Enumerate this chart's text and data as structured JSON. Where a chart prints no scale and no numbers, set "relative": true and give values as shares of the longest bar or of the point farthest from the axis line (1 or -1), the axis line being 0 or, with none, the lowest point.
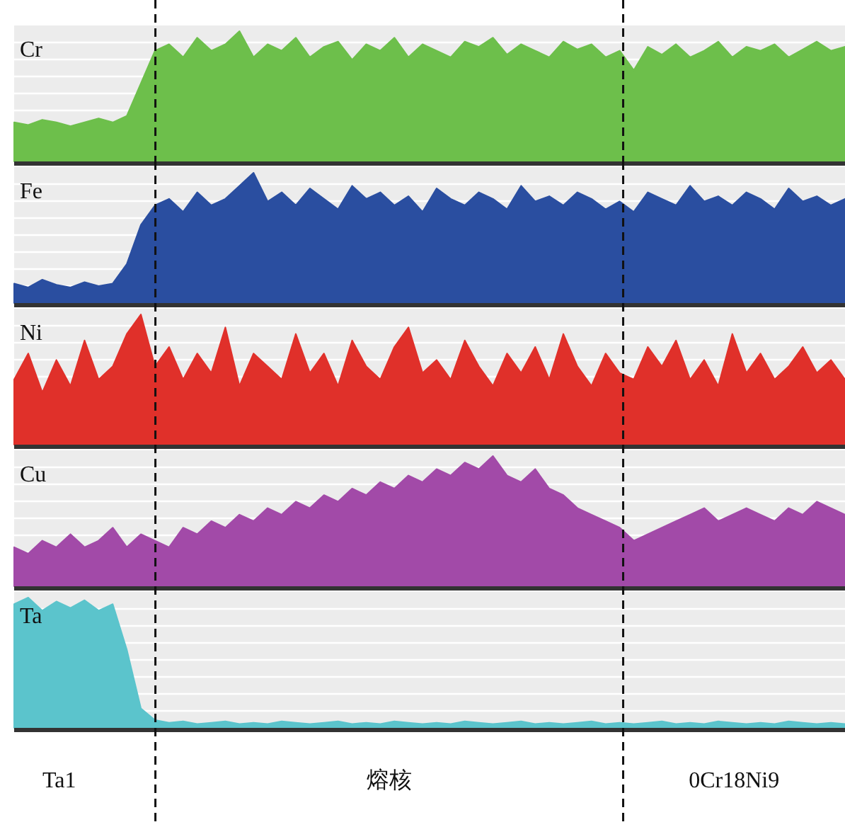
{
  "chart_data": [
    {
      "type": "area",
      "relative": true,
      "grid": true,
      "categories": [
        null,
        null,
        null,
        null,
        null,
        null,
        null,
        null,
        null,
        null,
        null,
        null,
        null,
        null,
        null,
        null,
        null,
        null,
        null,
        null,
        null,
        null,
        null,
        null,
        null,
        null,
        null,
        null,
        null,
        null,
        null,
        null,
        null,
        null,
        null,
        null,
        null,
        null,
        null,
        null,
        null,
        null,
        null,
        null,
        null,
        null,
        null,
        null,
        null,
        null,
        null,
        null,
        null,
        null,
        null,
        null,
        null,
        null,
        null,
        null
      ],
      "series": [
        {
          "name": "Cr",
          "color": "#6dbf4b",
          "values": [
            0.3,
            0.28,
            0.32,
            0.3,
            0.27,
            0.3,
            0.33,
            0.3,
            0.35,
            0.6,
            0.85,
            0.9,
            0.8,
            0.95,
            0.85,
            0.9,
            1.0,
            0.8,
            0.9,
            0.85,
            0.95,
            0.8,
            0.88,
            0.92,
            0.78,
            0.9,
            0.85,
            0.95,
            0.8,
            0.9,
            0.85,
            0.8,
            0.92,
            0.88,
            0.95,
            0.82,
            0.9,
            0.85,
            0.8,
            0.92,
            0.86,
            0.9,
            0.8,
            0.85,
            0.7,
            0.88,
            0.82,
            0.9,
            0.8,
            0.85,
            0.92,
            0.8,
            0.88,
            0.85,
            0.9,
            0.8,
            0.86,
            0.92,
            0.85,
            0.88
          ]
        }
      ]
    },
    {
      "type": "area",
      "relative": true,
      "grid": true,
      "categories": [
        null,
        null,
        null,
        null,
        null,
        null,
        null,
        null,
        null,
        null,
        null,
        null,
        null,
        null,
        null,
        null,
        null,
        null,
        null,
        null,
        null,
        null,
        null,
        null,
        null,
        null,
        null,
        null,
        null,
        null,
        null,
        null,
        null,
        null,
        null,
        null,
        null,
        null,
        null,
        null,
        null,
        null,
        null,
        null,
        null,
        null,
        null,
        null,
        null,
        null,
        null,
        null,
        null,
        null,
        null,
        null,
        null,
        null,
        null,
        null
      ],
      "series": [
        {
          "name": "Fe",
          "color": "#2a4ea0",
          "values": [
            0.15,
            0.12,
            0.18,
            0.14,
            0.12,
            0.16,
            0.13,
            0.15,
            0.3,
            0.6,
            0.75,
            0.8,
            0.7,
            0.85,
            0.75,
            0.8,
            0.9,
            1.0,
            0.78,
            0.85,
            0.75,
            0.88,
            0.8,
            0.72,
            0.9,
            0.8,
            0.85,
            0.75,
            0.82,
            0.7,
            0.88,
            0.8,
            0.75,
            0.85,
            0.8,
            0.72,
            0.9,
            0.78,
            0.82,
            0.75,
            0.85,
            0.8,
            0.72,
            0.78,
            0.7,
            0.85,
            0.8,
            0.75,
            0.9,
            0.78,
            0.82,
            0.75,
            0.85,
            0.8,
            0.72,
            0.88,
            0.78,
            0.82,
            0.75,
            0.8
          ]
        }
      ]
    },
    {
      "type": "area",
      "relative": true,
      "grid": true,
      "categories": [
        null,
        null,
        null,
        null,
        null,
        null,
        null,
        null,
        null,
        null,
        null,
        null,
        null,
        null,
        null,
        null,
        null,
        null,
        null,
        null,
        null,
        null,
        null,
        null,
        null,
        null,
        null,
        null,
        null,
        null,
        null,
        null,
        null,
        null,
        null,
        null,
        null,
        null,
        null,
        null,
        null,
        null,
        null,
        null,
        null,
        null,
        null,
        null,
        null,
        null,
        null,
        null,
        null,
        null,
        null,
        null,
        null,
        null,
        null,
        null
      ],
      "series": [
        {
          "name": "Ni",
          "color": "#e0302a",
          "values": [
            0.5,
            0.7,
            0.4,
            0.65,
            0.45,
            0.8,
            0.5,
            0.6,
            0.85,
            1.0,
            0.6,
            0.75,
            0.5,
            0.7,
            0.55,
            0.9,
            0.45,
            0.7,
            0.6,
            0.5,
            0.85,
            0.55,
            0.7,
            0.45,
            0.8,
            0.6,
            0.5,
            0.75,
            0.9,
            0.55,
            0.65,
            0.5,
            0.8,
            0.6,
            0.45,
            0.7,
            0.55,
            0.75,
            0.5,
            0.85,
            0.6,
            0.45,
            0.7,
            0.55,
            0.5,
            0.75,
            0.6,
            0.8,
            0.5,
            0.65,
            0.45,
            0.85,
            0.55,
            0.7,
            0.5,
            0.6,
            0.75,
            0.55,
            0.65,
            0.5
          ]
        }
      ]
    },
    {
      "type": "area",
      "relative": true,
      "grid": true,
      "categories": [
        null,
        null,
        null,
        null,
        null,
        null,
        null,
        null,
        null,
        null,
        null,
        null,
        null,
        null,
        null,
        null,
        null,
        null,
        null,
        null,
        null,
        null,
        null,
        null,
        null,
        null,
        null,
        null,
        null,
        null,
        null,
        null,
        null,
        null,
        null,
        null,
        null,
        null,
        null,
        null,
        null,
        null,
        null,
        null,
        null,
        null,
        null,
        null,
        null,
        null,
        null,
        null,
        null,
        null,
        null,
        null,
        null,
        null,
        null,
        null
      ],
      "series": [
        {
          "name": "Cu",
          "color": "#a24aa8",
          "values": [
            0.3,
            0.25,
            0.35,
            0.3,
            0.4,
            0.3,
            0.35,
            0.45,
            0.3,
            0.4,
            0.35,
            0.3,
            0.45,
            0.4,
            0.5,
            0.45,
            0.55,
            0.5,
            0.6,
            0.55,
            0.65,
            0.6,
            0.7,
            0.65,
            0.75,
            0.7,
            0.8,
            0.75,
            0.85,
            0.8,
            0.9,
            0.85,
            0.95,
            0.9,
            1.0,
            0.85,
            0.8,
            0.9,
            0.75,
            0.7,
            0.6,
            0.55,
            0.5,
            0.45,
            0.35,
            0.4,
            0.45,
            0.5,
            0.55,
            0.6,
            0.5,
            0.55,
            0.6,
            0.55,
            0.5,
            0.6,
            0.55,
            0.65,
            0.6,
            0.55
          ]
        }
      ]
    },
    {
      "type": "area",
      "relative": true,
      "grid": true,
      "categories": [
        null,
        null,
        null,
        null,
        null,
        null,
        null,
        null,
        null,
        null,
        null,
        null,
        null,
        null,
        null,
        null,
        null,
        null,
        null,
        null,
        null,
        null,
        null,
        null,
        null,
        null,
        null,
        null,
        null,
        null,
        null,
        null,
        null,
        null,
        null,
        null,
        null,
        null,
        null,
        null,
        null,
        null,
        null,
        null,
        null,
        null,
        null,
        null,
        null,
        null,
        null,
        null,
        null,
        null,
        null,
        null,
        null,
        null,
        null,
        null
      ],
      "series": [
        {
          "name": "Ta",
          "color": "#5bc4cc",
          "values": [
            0.95,
            1.0,
            0.9,
            0.97,
            0.92,
            0.98,
            0.9,
            0.95,
            0.6,
            0.15,
            0.06,
            0.04,
            0.05,
            0.03,
            0.04,
            0.05,
            0.03,
            0.04,
            0.03,
            0.05,
            0.04,
            0.03,
            0.04,
            0.05,
            0.03,
            0.04,
            0.03,
            0.05,
            0.04,
            0.03,
            0.04,
            0.03,
            0.05,
            0.04,
            0.03,
            0.04,
            0.05,
            0.03,
            0.04,
            0.03,
            0.04,
            0.05,
            0.03,
            0.04,
            0.03,
            0.04,
            0.05,
            0.03,
            0.04,
            0.03,
            0.05,
            0.04,
            0.03,
            0.04,
            0.03,
            0.05,
            0.04,
            0.03,
            0.04,
            0.03
          ]
        }
      ],
      "annotations": [
        "Ta1",
        "熔核",
        "0Cr18Ni9"
      ]
    }
  ]
}
